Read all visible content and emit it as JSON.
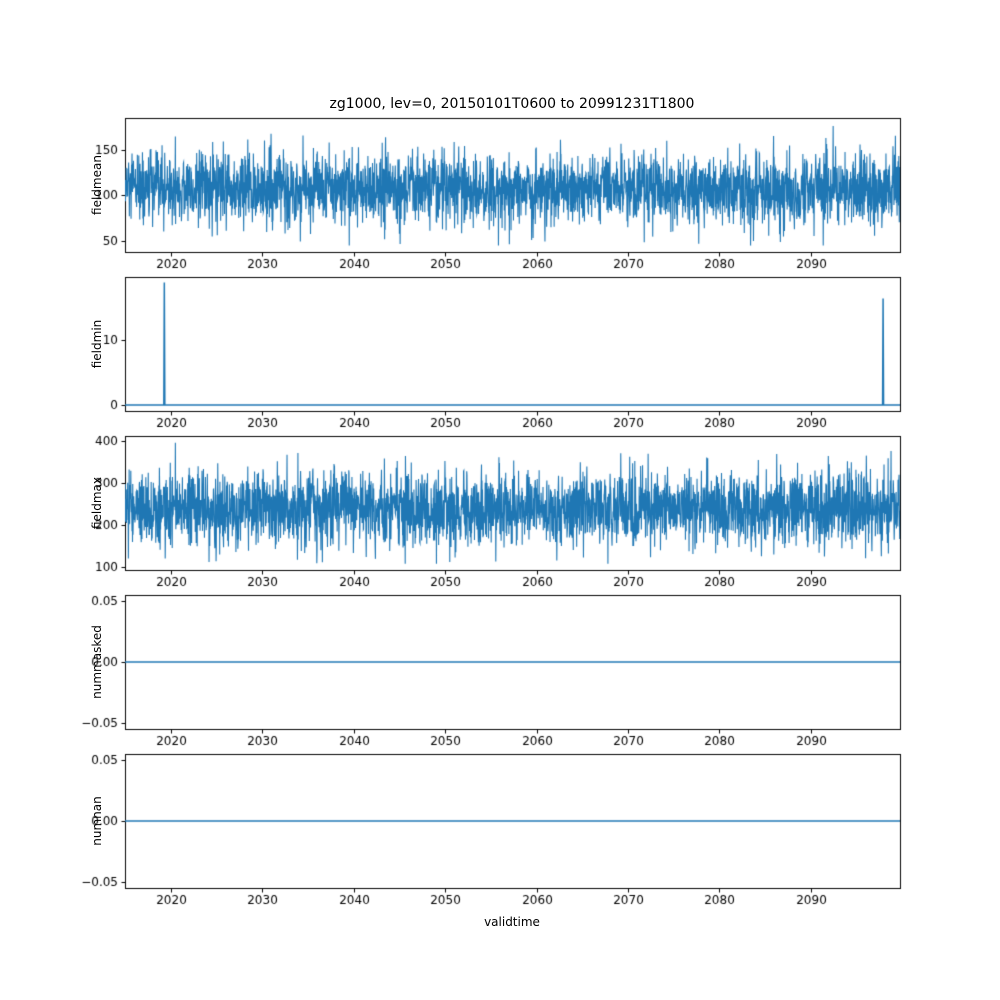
{
  "figure": {
    "title": "zg1000, lev=0, 20150101T0600 to 20991231T1800",
    "xlabel": "validtime"
  },
  "chart_data": {
    "type": "line",
    "title": "zg1000, lev=0, 20150101T0600 to 20991231T1800",
    "xlabel": "validtime",
    "x_range": [
      2015,
      2099.75
    ],
    "x_ticks": [
      2020,
      2030,
      2040,
      2050,
      2060,
      2070,
      2080,
      2090
    ],
    "x_ticklabels": [
      "2020",
      "2030",
      "2040",
      "2050",
      "2060",
      "2070",
      "2080",
      "2090"
    ],
    "line_color": "#1f77b4",
    "grid": false,
    "legend": "none",
    "charts": [
      {
        "type": "line",
        "ylabel": "fieldmean",
        "ylim": [
          38,
          185
        ],
        "yticks": [
          50,
          100,
          150
        ],
        "yticklabels": [
          "50",
          "100",
          "150"
        ],
        "noise": {
          "mean": 107,
          "std": 20,
          "min": 45,
          "max": 178,
          "points": 3200,
          "seed": 12345
        }
      },
      {
        "type": "line",
        "ylabel": "fieldmin",
        "ylim": [
          -0.95,
          19.85
        ],
        "yticks": [
          0,
          10
        ],
        "yticklabels": [
          "0",
          "10"
        ],
        "baseline": 0,
        "spikes": [
          {
            "x": 2019.3,
            "value": 19.0
          },
          {
            "x": 2097.9,
            "value": 16.5
          }
        ]
      },
      {
        "type": "line",
        "ylabel": "fieldmax",
        "ylim": [
          93,
          413
        ],
        "yticks": [
          100,
          200,
          300,
          400
        ],
        "yticklabels": [
          "100",
          "200",
          "300",
          "400"
        ],
        "noise": {
          "mean": 240,
          "std": 45,
          "min": 108,
          "max": 398,
          "points": 3200,
          "seed": 777
        }
      },
      {
        "type": "line",
        "ylabel": "nummasked",
        "ylim": [
          -0.055,
          0.055
        ],
        "yticks": [
          -0.05,
          0,
          0.05
        ],
        "yticklabels": [
          "−0.05",
          "0.00",
          "0.05"
        ],
        "constant": 0
      },
      {
        "type": "line",
        "ylabel": "numnan",
        "ylim": [
          -0.055,
          0.055
        ],
        "yticks": [
          -0.05,
          0,
          0.05
        ],
        "yticklabels": [
          "−0.05",
          "0.00",
          "0.05"
        ],
        "constant": 0
      }
    ]
  }
}
